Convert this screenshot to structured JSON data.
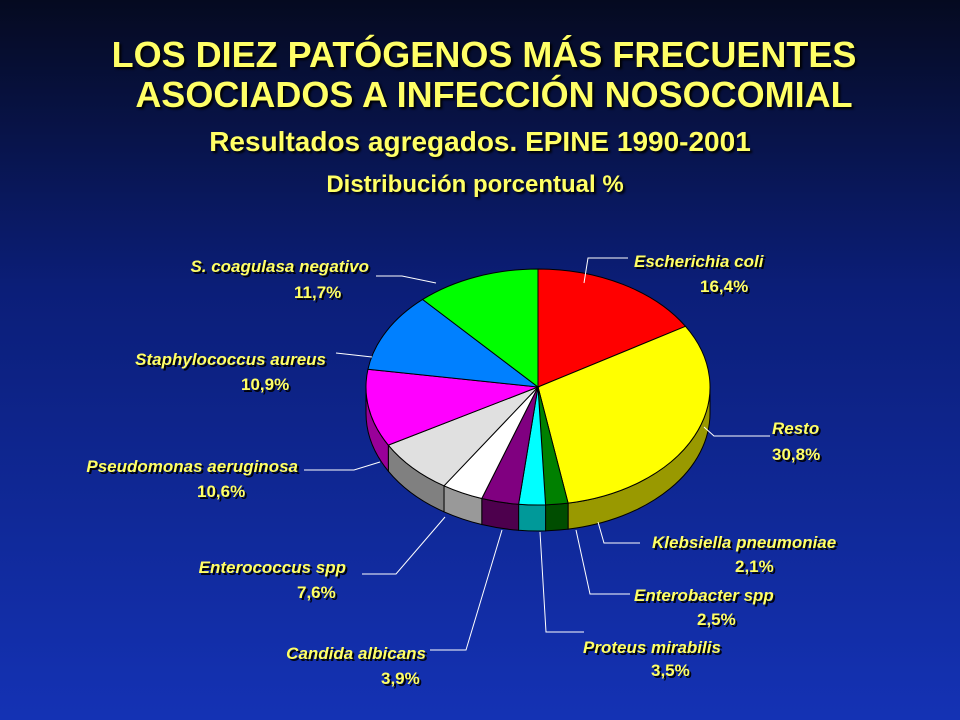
{
  "header": {
    "title_line1": "LOS DIEZ PATÓGENOS MÁS FRECUENTES",
    "title_line2": "ASOCIADOS A INFECCIÓN NOSOCOMIAL",
    "subtitle": "Resultados agregados. EPINE 1990-2001",
    "subtitle2": "Distribución porcentual %"
  },
  "chart_data": {
    "type": "pie",
    "title": "LOS DIEZ PATÓGENOS MÁS FRECUENTES ASOCIADOS A INFECCIÓN NOSOCOMIAL",
    "subtitle": "Resultados agregados. EPINE 1990-2001 — Distribución porcentual %",
    "unit": "%",
    "slices": [
      {
        "label": "Escherichia coli",
        "value": 16.4,
        "display": "16,4%",
        "color": "#ff0000",
        "side": "#990000"
      },
      {
        "label": "Resto",
        "value": 30.8,
        "display": "30,8%",
        "color": "#ffff00",
        "side": "#999900"
      },
      {
        "label": "Klebsiella pneumoniae",
        "value": 2.1,
        "display": "2,1%",
        "color": "#008000",
        "side": "#004d00"
      },
      {
        "label": "Enterobacter spp",
        "value": 2.5,
        "display": "2,5%",
        "color": "#00ffff",
        "side": "#009999"
      },
      {
        "label": "Proteus mirabilis",
        "value": 3.5,
        "display": "3,5%",
        "color": "#800080",
        "side": "#4d004d"
      },
      {
        "label": "Candida albicans",
        "value": 3.9,
        "display": "3,9%",
        "color": "#ffffff",
        "side": "#999999"
      },
      {
        "label": "Enterococcus spp",
        "value": 7.6,
        "display": "7,6%",
        "color": "#e0e0e0",
        "side": "#808080"
      },
      {
        "label": "Pseudomonas aeruginosa",
        "value": 10.6,
        "display": "10,6%",
        "color": "#ff00ff",
        "side": "#990099"
      },
      {
        "label": "Staphylococcus aureus",
        "value": 10.9,
        "display": "10,9%",
        "color": "#0080ff",
        "side": "#004d99"
      },
      {
        "label": "S. coagulasa negativo",
        "value": 11.7,
        "display": "11,7%",
        "color": "#00ff00",
        "side": "#009900"
      }
    ]
  }
}
